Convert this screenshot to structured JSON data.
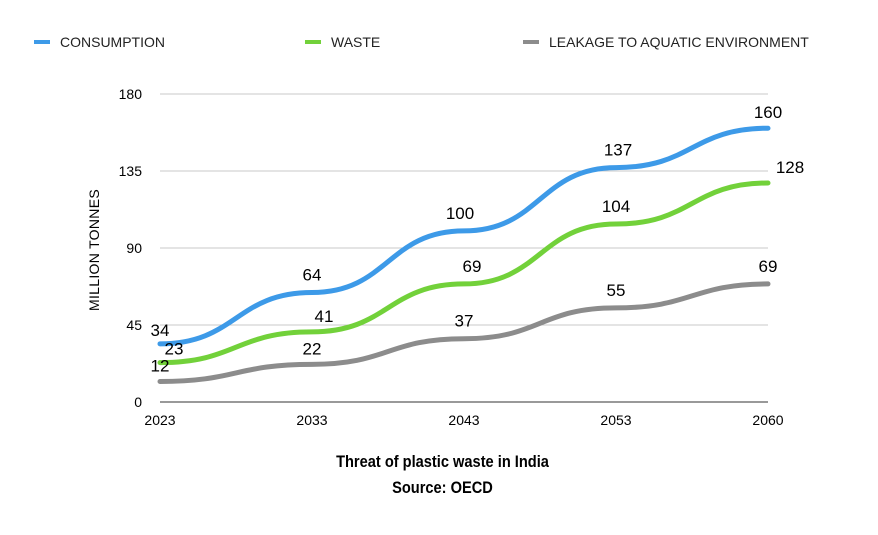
{
  "chart_data": {
    "type": "line",
    "categories": [
      "2023",
      "2033",
      "2043",
      "2053",
      "2060"
    ],
    "series": [
      {
        "name": "CONSUMPTION",
        "color": "#3d9ae8",
        "values": [
          34,
          64,
          100,
          137,
          160
        ],
        "labels": [
          "34",
          "64",
          "100",
          "137",
          "160"
        ]
      },
      {
        "name": "WASTE",
        "color": "#72d13a",
        "values": [
          23,
          41,
          69,
          104,
          128
        ],
        "labels": [
          "23",
          "41",
          "69",
          "104",
          "128"
        ]
      },
      {
        "name": "LEAKAGE TO AQUATIC ENVIRONMENT",
        "color": "#8c8c8c",
        "values": [
          12,
          22,
          37,
          55,
          69
        ],
        "labels": [
          "12",
          "22",
          "37",
          "55",
          "69"
        ]
      }
    ],
    "yticks": [
      "0",
      "45",
      "90",
      "135",
      "180"
    ],
    "ylim": [
      0,
      180
    ],
    "ylabel": "MILLION TONNES",
    "xlabel": "",
    "grid": true,
    "legend_position": "top"
  },
  "caption": {
    "title": "Threat of plastic waste in India",
    "source": "Source: OECD"
  }
}
